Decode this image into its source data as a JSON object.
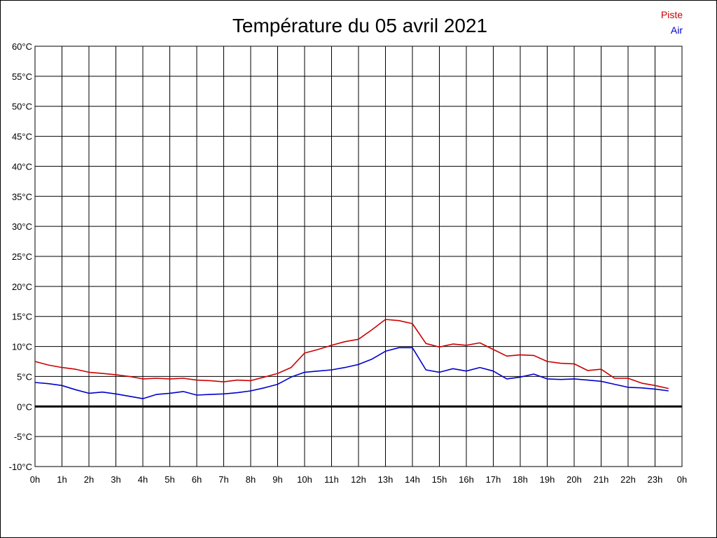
{
  "chart_data": {
    "type": "line",
    "title": "Température du 05 avril 2021",
    "xlabel": "",
    "ylabel": "",
    "x_ticks": [
      "0h",
      "1h",
      "2h",
      "3h",
      "4h",
      "5h",
      "6h",
      "7h",
      "8h",
      "9h",
      "10h",
      "11h",
      "12h",
      "13h",
      "14h",
      "15h",
      "16h",
      "17h",
      "18h",
      "19h",
      "20h",
      "21h",
      "22h",
      "23h",
      "0h"
    ],
    "y_ticks": [
      "60°C",
      "55°C",
      "50°C",
      "45°C",
      "40°C",
      "35°C",
      "30°C",
      "25°C",
      "20°C",
      "15°C",
      "10°C",
      "5°C",
      "0°C",
      "-5°C",
      "-10°C"
    ],
    "xlim": [
      0,
      24
    ],
    "ylim": [
      -10,
      60
    ],
    "grid": true,
    "legend_position": "top-right",
    "series": [
      {
        "name": "Piste",
        "color": "#cc0000",
        "x": [
          0,
          0.5,
          1,
          1.5,
          2,
          2.5,
          3,
          3.5,
          4,
          4.5,
          5,
          5.5,
          6,
          6.5,
          7,
          7.5,
          8,
          8.5,
          9,
          9.5,
          10,
          10.5,
          11,
          11.5,
          12,
          12.5,
          13,
          13.5,
          14,
          14.5,
          15,
          15.5,
          16,
          16.5,
          17,
          17.5,
          18,
          18.5,
          19,
          19.5,
          20,
          20.5,
          21,
          21.5,
          22,
          22.5,
          23,
          23.5
        ],
        "y": [
          7.5,
          6.9,
          6.5,
          6.2,
          5.7,
          5.5,
          5.3,
          5.0,
          4.6,
          4.7,
          4.6,
          4.7,
          4.4,
          4.3,
          4.1,
          4.4,
          4.3,
          4.9,
          5.5,
          6.5,
          8.9,
          9.5,
          10.2,
          10.8,
          11.2,
          12.8,
          14.5,
          14.3,
          13.8,
          10.5,
          9.9,
          10.4,
          10.2,
          10.6,
          9.5,
          8.4,
          8.6,
          8.5,
          7.5,
          7.2,
          7.1,
          6.0,
          6.2,
          4.7,
          4.7,
          3.9,
          3.5,
          3.0
        ]
      },
      {
        "name": "Air",
        "color": "#0000cc",
        "x": [
          0,
          0.5,
          1,
          1.5,
          2,
          2.5,
          3,
          3.5,
          4,
          4.5,
          5,
          5.5,
          6,
          6.5,
          7,
          7.5,
          8,
          8.5,
          9,
          9.5,
          10,
          10.5,
          11,
          11.5,
          12,
          12.5,
          13,
          13.5,
          14,
          14.5,
          15,
          15.5,
          16,
          16.5,
          17,
          17.5,
          18,
          18.5,
          19,
          19.5,
          20,
          20.5,
          21,
          21.5,
          22,
          22.5,
          23,
          23.5
        ],
        "y": [
          4.0,
          3.8,
          3.5,
          2.8,
          2.2,
          2.4,
          2.1,
          1.7,
          1.3,
          2.0,
          2.2,
          2.5,
          1.9,
          2.0,
          2.1,
          2.3,
          2.6,
          3.1,
          3.7,
          4.9,
          5.7,
          5.9,
          6.1,
          6.5,
          7.0,
          7.9,
          9.2,
          9.8,
          9.8,
          6.1,
          5.7,
          6.3,
          5.9,
          6.5,
          5.9,
          4.6,
          4.9,
          5.4,
          4.6,
          4.5,
          4.6,
          4.4,
          4.2,
          3.7,
          3.2,
          3.1,
          2.9,
          2.6
        ]
      }
    ]
  }
}
